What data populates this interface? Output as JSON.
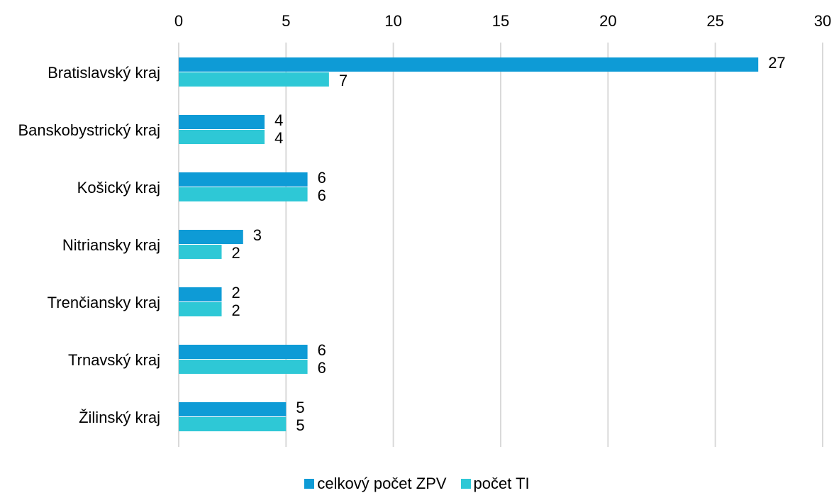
{
  "chart_data": {
    "type": "bar",
    "orientation": "horizontal",
    "categories": [
      "Bratislavský kraj",
      "Banskobystrický kraj",
      "Košický kraj",
      "Nitriansky kraj",
      "Trenčiansky kraj",
      "Trnavský kraj",
      "Žilinský kraj"
    ],
    "series": [
      {
        "name": "celkový počet ZPV",
        "color": "#0e9bd6",
        "values": [
          27,
          4,
          6,
          3,
          2,
          6,
          5
        ]
      },
      {
        "name": "počet TI",
        "color": "#2ec8d6",
        "values": [
          7,
          4,
          6,
          2,
          2,
          6,
          5
        ]
      }
    ],
    "xaxis": {
      "range": [
        0,
        30
      ],
      "ticks": [
        "0",
        "5",
        "10",
        "15",
        "20",
        "25",
        "30"
      ],
      "position": "top"
    },
    "grid": true,
    "legend": "bottom",
    "data_labels": true
  }
}
